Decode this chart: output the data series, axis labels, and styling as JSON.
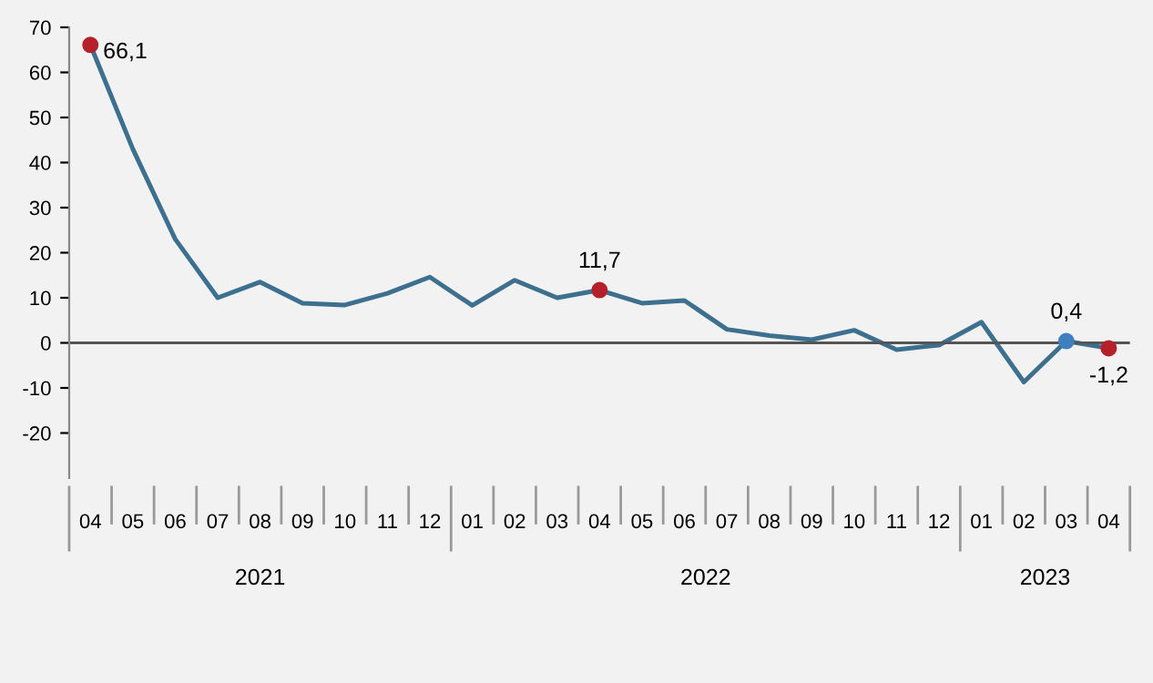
{
  "chart_data": {
    "type": "line",
    "categories": [
      "04",
      "05",
      "06",
      "07",
      "08",
      "09",
      "10",
      "11",
      "12",
      "01",
      "02",
      "03",
      "04",
      "05",
      "06",
      "07",
      "08",
      "09",
      "10",
      "11",
      "12",
      "01",
      "02",
      "03",
      "04"
    ],
    "series": [
      {
        "color": "#3d6f8e",
        "values": [
          66.1,
          43,
          23,
          10,
          13.5,
          8.8,
          8.4,
          11,
          14.6,
          8.3,
          13.9,
          10,
          11.7,
          8.8,
          9.4,
          3,
          1.6,
          0.7,
          2.8,
          -1.5,
          -0.5,
          4.6,
          -8.7,
          0.4,
          -1.2
        ]
      },
      {
        "type": "scatter",
        "marker": "circle",
        "colors": [
          [
            "#b5212b"
          ],
          null,
          null,
          null,
          null,
          null,
          null,
          null,
          null,
          null,
          null,
          null,
          [
            "#b5212b"
          ],
          null,
          null,
          null,
          null,
          null,
          null,
          null,
          null,
          null,
          null,
          [
            "#3f7fc0"
          ],
          [
            "#b5212b"
          ]
        ],
        "values": [
          66.1,
          null,
          null,
          null,
          null,
          null,
          null,
          null,
          null,
          null,
          null,
          null,
          11.7,
          null,
          null,
          null,
          null,
          null,
          null,
          null,
          null,
          null,
          null,
          0.4,
          -1.2
        ],
        "value_labels": [
          "66,1",
          null,
          null,
          null,
          null,
          null,
          null,
          null,
          null,
          null,
          null,
          null,
          "11,7",
          null,
          null,
          null,
          null,
          null,
          null,
          null,
          null,
          null,
          null,
          "0,4",
          "-1,2"
        ]
      }
    ],
    "annotations": [
      "2021",
      "2022",
      "2023"
    ],
    "ylim": [
      -30,
      70
    ],
    "yticks": [
      -20,
      -10,
      0,
      10,
      20,
      30,
      40,
      50,
      60,
      70
    ],
    "ref_lines": [
      {
        "axis": "y",
        "value": 0,
        "color": "#555555"
      }
    ],
    "grid": false,
    "legend": false
  }
}
